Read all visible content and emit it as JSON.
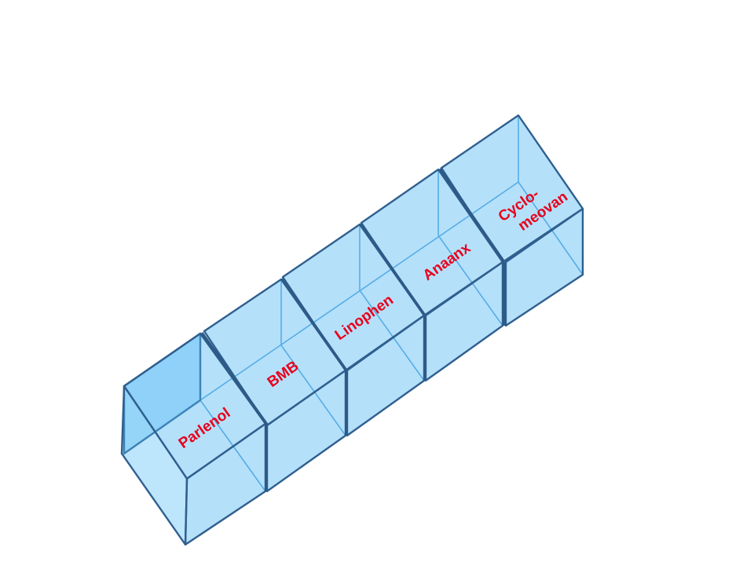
{
  "boxes": [
    {
      "label_lines": [
        "Parlenol"
      ]
    },
    {
      "label_lines": [
        "BMB"
      ]
    },
    {
      "label_lines": [
        "Linophen"
      ]
    },
    {
      "label_lines": [
        "Anaanx"
      ]
    },
    {
      "label_lines": [
        "Cyclo-",
        "meovan"
      ]
    }
  ],
  "colors": {
    "box_fill": "#4fb6f2",
    "box_stroke": "#2f5f8f",
    "label_text": "#e8001b"
  }
}
